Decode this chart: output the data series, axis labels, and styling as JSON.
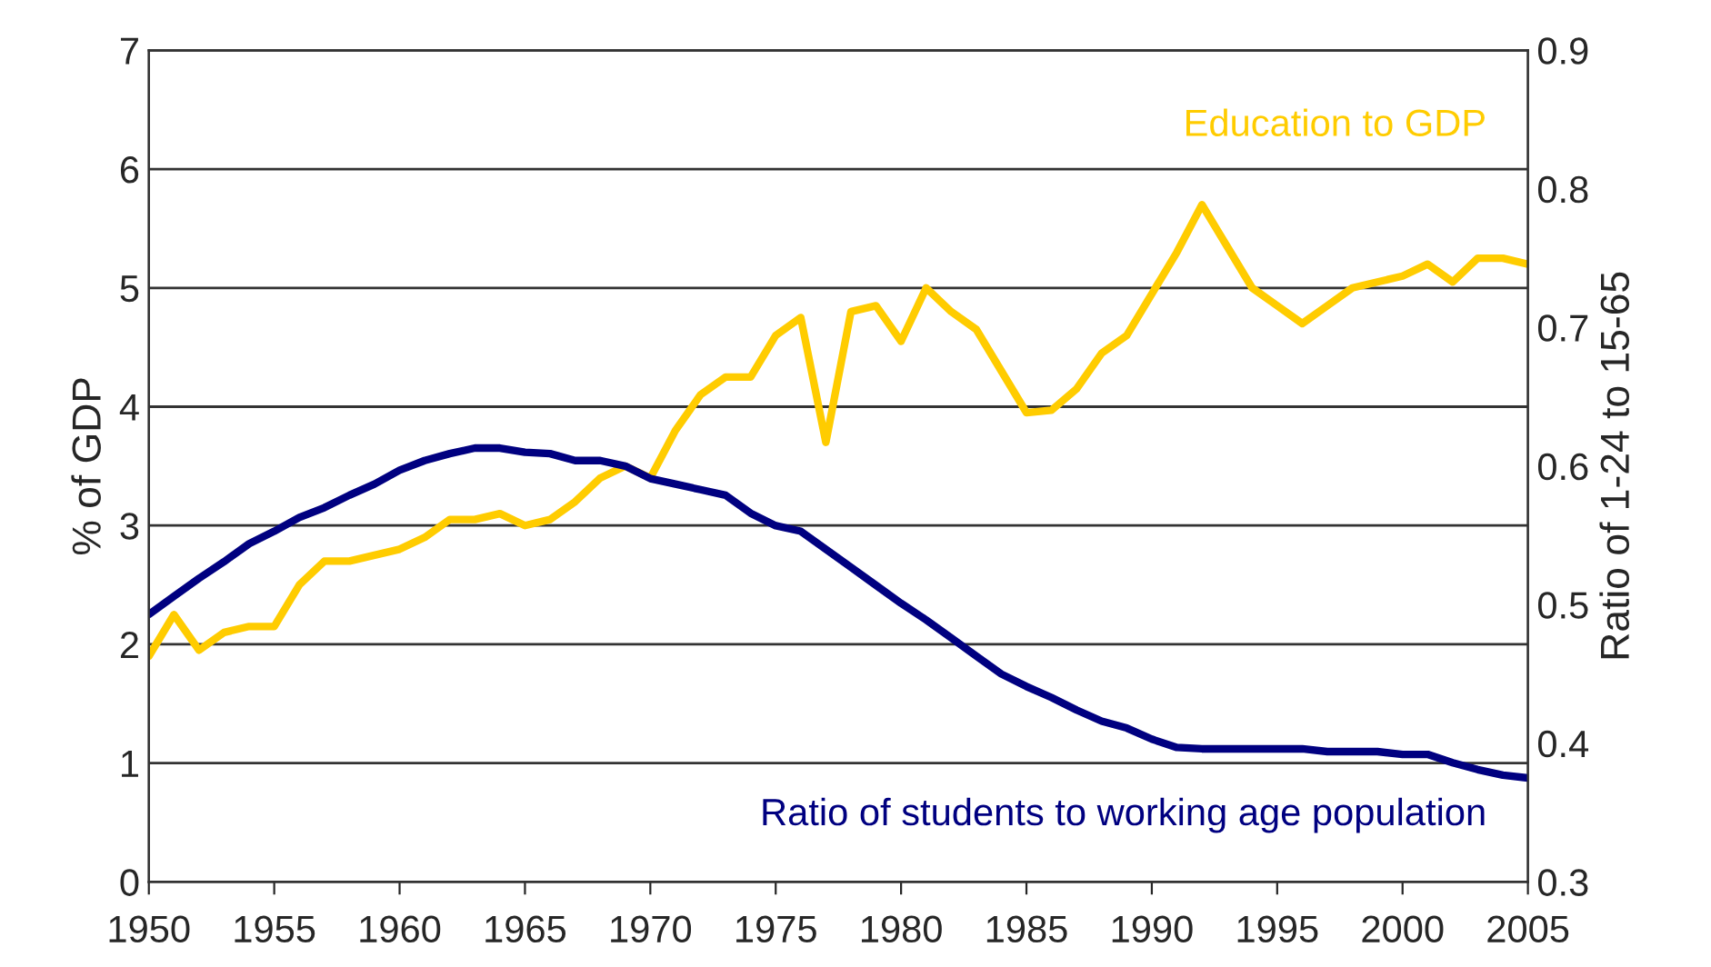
{
  "chart_data": {
    "type": "line",
    "x": [
      1950,
      1951,
      1952,
      1953,
      1954,
      1955,
      1956,
      1957,
      1958,
      1959,
      1960,
      1961,
      1962,
      1963,
      1964,
      1965,
      1966,
      1967,
      1968,
      1969,
      1970,
      1971,
      1972,
      1973,
      1974,
      1975,
      1976,
      1977,
      1978,
      1979,
      1980,
      1981,
      1982,
      1983,
      1984,
      1985,
      1986,
      1987,
      1988,
      1989,
      1990,
      1991,
      1992,
      1993,
      1994,
      1995,
      1996,
      1997,
      1998,
      1999,
      2000,
      2001,
      2002,
      2003,
      2004,
      2005
    ],
    "series": [
      {
        "name": "Education to GDP",
        "color": "#ffcc00",
        "values": [
          1.9,
          2.25,
          1.95,
          2.1,
          2.15,
          2.15,
          2.5,
          2.7,
          2.7,
          2.75,
          2.8,
          2.9,
          3.05,
          3.05,
          3.1,
          3.0,
          3.05,
          3.2,
          3.4,
          3.5,
          3.4,
          3.8,
          4.1,
          4.25,
          4.25,
          4.6,
          4.75,
          3.7,
          4.8,
          4.85,
          4.55,
          5.0,
          4.8,
          4.65,
          4.3,
          3.95,
          3.97,
          4.15,
          4.45,
          4.6,
          4.95,
          5.3,
          5.7,
          5.35,
          5.0,
          4.85,
          4.7,
          4.85,
          5.0,
          5.05,
          5.1,
          5.2,
          5.05,
          5.25,
          5.25,
          5.2
        ]
      },
      {
        "name": "Ratio of students to working age population",
        "color": "#000080",
        "axis": "y2",
        "values": [
          0.493,
          0.506,
          0.519,
          0.531,
          0.544,
          0.553,
          0.563,
          0.57,
          0.579,
          0.587,
          0.597,
          0.604,
          0.609,
          0.613,
          0.613,
          0.61,
          0.609,
          0.604,
          0.604,
          0.6,
          0.591,
          0.587,
          0.583,
          0.579,
          0.566,
          0.557,
          0.553,
          0.54,
          0.527,
          0.514,
          0.501,
          0.489,
          0.476,
          0.463,
          0.45,
          0.441,
          0.433,
          0.424,
          0.416,
          0.411,
          0.403,
          0.397,
          0.396,
          0.396,
          0.396,
          0.396,
          0.396,
          0.394,
          0.394,
          0.394,
          0.392,
          0.392,
          0.386,
          0.381,
          0.377,
          0.375
        ]
      }
    ],
    "ylabel": "% of GDP",
    "y2label": "Ratio of 1-24 to 15-65",
    "xlim": [
      1950,
      2005
    ],
    "xticks": [
      1950,
      1955,
      1960,
      1965,
      1970,
      1975,
      1980,
      1985,
      1990,
      1995,
      2000,
      2005
    ],
    "ylim": [
      0,
      7
    ],
    "yticks": [
      0,
      1,
      2,
      3,
      4,
      5,
      6,
      7
    ],
    "y2lim": [
      0.3,
      0.9
    ],
    "y2ticks": [
      0.3,
      0.4,
      0.5,
      0.6,
      0.7,
      0.8,
      0.9
    ],
    "grid": "y",
    "legend": false,
    "line_style": "solid",
    "marker": "none"
  }
}
